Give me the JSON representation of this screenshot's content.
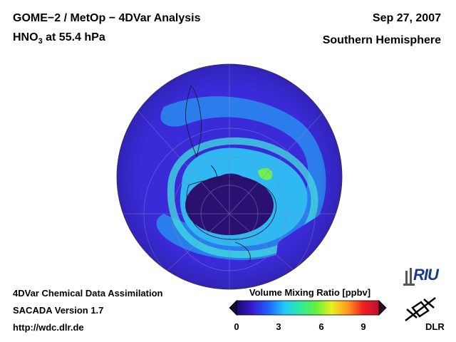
{
  "header": {
    "instrument": "GOME−2 / MetOp − 4DVar Analysis",
    "species": "HNO",
    "species_sub": "3",
    "level": " at 55.4 hPa",
    "date": "Sep 27, 2007",
    "region": "Southern Hemisphere"
  },
  "footer": {
    "line1": "4DVar Chemical Data Assimilation",
    "line2": "SACADA Version 1.7",
    "line3": "http://wdc.dlr.de"
  },
  "colorbar": {
    "label": "Volume Mixing Ratio [ppbv]",
    "ticks": [
      "0",
      "3",
      "6",
      "9"
    ],
    "colors": [
      "#1a0a6e",
      "#3a1ad0",
      "#2060ff",
      "#20c8ff",
      "#30e8a0",
      "#60f040",
      "#e8f020",
      "#ff9a20",
      "#f02020",
      "#c01030"
    ]
  },
  "logos": {
    "riu": "RIU",
    "dlr": "DLR"
  },
  "map_colors": {
    "outer": "#3a2ad8",
    "ring": "#2aa8f0",
    "core": "#2a1070",
    "band": "#48d8f0"
  }
}
